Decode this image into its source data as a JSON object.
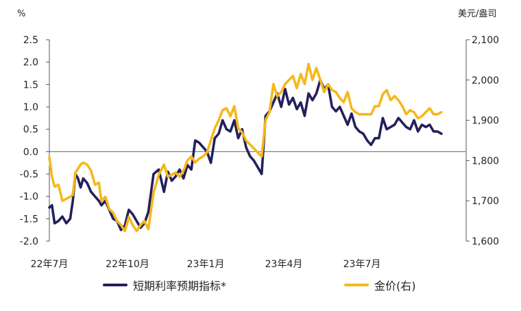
{
  "chart_data": {
    "type": "line",
    "left_unit": "%",
    "right_unit": "美元/盎司",
    "x_tick_labels": [
      "22年7月",
      "22年10月",
      "23年1月",
      "23年4月",
      "23年7月"
    ],
    "y_left": {
      "ticks": [
        "2.5",
        "2.0",
        "1.5",
        "1.0",
        "0.5",
        "0.0",
        "-0.5",
        "-1.0",
        "-1.5",
        "-2.0"
      ],
      "range": [
        -2.0,
        2.5
      ]
    },
    "y_right": {
      "ticks": [
        "2,100",
        "2,000",
        "1,900",
        "1,800",
        "1,700",
        "1,600"
      ],
      "range": [
        1600,
        2100
      ]
    },
    "x_range": [
      0,
      16.0
    ],
    "x_tick_positions": [
      0,
      3,
      6,
      9,
      12
    ],
    "zero_line": true,
    "series": [
      {
        "name": "短期利率预期指标*",
        "axis": "left",
        "color": "#23205c",
        "x": [
          0.0,
          0.1,
          0.2,
          0.35,
          0.5,
          0.65,
          0.8,
          0.9,
          1.0,
          1.1,
          1.2,
          1.3,
          1.45,
          1.6,
          1.75,
          1.9,
          2.0,
          2.15,
          2.3,
          2.45,
          2.6,
          2.75,
          2.9,
          3.05,
          3.2,
          3.35,
          3.5,
          3.65,
          3.8,
          4.0,
          4.2,
          4.4,
          4.55,
          4.7,
          4.85,
          5.0,
          5.15,
          5.3,
          5.45,
          5.6,
          5.75,
          5.9,
          6.05,
          6.2,
          6.35,
          6.5,
          6.65,
          6.8,
          6.95,
          7.1,
          7.25,
          7.4,
          7.55,
          7.7,
          7.85,
          8.0,
          8.15,
          8.3,
          8.45,
          8.6,
          8.75,
          8.9,
          9.05,
          9.2,
          9.35,
          9.5,
          9.65,
          9.8,
          9.95,
          10.1,
          10.25,
          10.4,
          10.55,
          10.7,
          10.85,
          11.0,
          11.15,
          11.3,
          11.45,
          11.6,
          11.75,
          11.9,
          12.05,
          12.2,
          12.35,
          12.5,
          12.65,
          12.8,
          12.95,
          13.1,
          13.25,
          13.4,
          13.55,
          13.7,
          13.85,
          14.0,
          14.15,
          14.3,
          14.45,
          14.6,
          14.75,
          14.9,
          15.05
        ],
        "y": [
          -1.25,
          -1.2,
          -1.6,
          -1.55,
          -1.45,
          -1.6,
          -1.5,
          -1.1,
          -0.5,
          -0.6,
          -0.8,
          -0.6,
          -0.7,
          -0.9,
          -1.0,
          -1.1,
          -1.2,
          -1.1,
          -1.3,
          -1.5,
          -1.55,
          -1.75,
          -1.65,
          -1.3,
          -1.4,
          -1.55,
          -1.7,
          -1.6,
          -1.35,
          -0.5,
          -0.4,
          -0.9,
          -0.45,
          -0.65,
          -0.55,
          -0.4,
          -0.6,
          -0.3,
          -0.4,
          0.25,
          0.2,
          0.1,
          0.0,
          -0.25,
          0.3,
          0.4,
          0.7,
          0.5,
          0.45,
          0.7,
          0.3,
          0.5,
          0.1,
          -0.1,
          -0.2,
          -0.35,
          -0.5,
          0.8,
          0.9,
          1.1,
          1.3,
          1.0,
          1.4,
          1.05,
          1.2,
          0.95,
          1.1,
          0.8,
          1.3,
          1.15,
          1.3,
          1.6,
          1.4,
          1.5,
          1.0,
          0.9,
          1.0,
          0.8,
          0.6,
          0.85,
          0.55,
          0.45,
          0.4,
          0.25,
          0.15,
          0.3,
          0.3,
          0.75,
          0.5,
          0.55,
          0.6,
          0.75,
          0.65,
          0.55,
          0.5,
          0.7,
          0.45,
          0.6,
          0.55,
          0.6,
          0.45,
          0.45,
          0.4
        ]
      },
      {
        "name": "金价(右)",
        "axis": "right",
        "color": "#f5b81c",
        "x": [
          0.0,
          0.1,
          0.2,
          0.35,
          0.5,
          0.65,
          0.8,
          0.9,
          1.0,
          1.1,
          1.2,
          1.3,
          1.45,
          1.6,
          1.75,
          1.9,
          2.0,
          2.15,
          2.3,
          2.45,
          2.6,
          2.75,
          2.9,
          3.05,
          3.2,
          3.35,
          3.5,
          3.65,
          3.8,
          4.0,
          4.2,
          4.4,
          4.55,
          4.7,
          4.85,
          5.0,
          5.15,
          5.3,
          5.45,
          5.6,
          5.75,
          5.9,
          6.05,
          6.2,
          6.35,
          6.5,
          6.65,
          6.8,
          6.95,
          7.1,
          7.25,
          7.4,
          7.55,
          7.7,
          7.85,
          8.0,
          8.15,
          8.3,
          8.45,
          8.6,
          8.75,
          8.9,
          9.05,
          9.2,
          9.35,
          9.5,
          9.65,
          9.8,
          9.95,
          10.1,
          10.25,
          10.4,
          10.55,
          10.7,
          10.85,
          11.0,
          11.15,
          11.3,
          11.45,
          11.6,
          11.75,
          11.9,
          12.05,
          12.2,
          12.35,
          12.5,
          12.65,
          12.8,
          12.95,
          13.1,
          13.25,
          13.4,
          13.55,
          13.7,
          13.85,
          14.0,
          14.15,
          14.3,
          14.45,
          14.6,
          14.75,
          14.9,
          15.05
        ],
        "y": [
          1808,
          1760,
          1735,
          1740,
          1700,
          1705,
          1710,
          1715,
          1770,
          1780,
          1790,
          1795,
          1790,
          1775,
          1740,
          1745,
          1700,
          1710,
          1680,
          1670,
          1650,
          1640,
          1625,
          1660,
          1640,
          1625,
          1640,
          1650,
          1630,
          1720,
          1765,
          1790,
          1760,
          1765,
          1770,
          1760,
          1775,
          1800,
          1810,
          1795,
          1805,
          1810,
          1820,
          1850,
          1880,
          1900,
          1925,
          1930,
          1910,
          1935,
          1880,
          1870,
          1850,
          1840,
          1830,
          1820,
          1810,
          1900,
          1920,
          1990,
          1960,
          1970,
          1990,
          2000,
          2010,
          1980,
          2015,
          1990,
          2040,
          2000,
          2030,
          2000,
          1970,
          1990,
          1975,
          1970,
          1955,
          1945,
          1970,
          1930,
          1920,
          1915,
          1915,
          1915,
          1915,
          1935,
          1935,
          1965,
          1975,
          1950,
          1960,
          1950,
          1935,
          1915,
          1925,
          1920,
          1905,
          1910,
          1920,
          1930,
          1915,
          1915,
          1920
        ]
      }
    ]
  }
}
